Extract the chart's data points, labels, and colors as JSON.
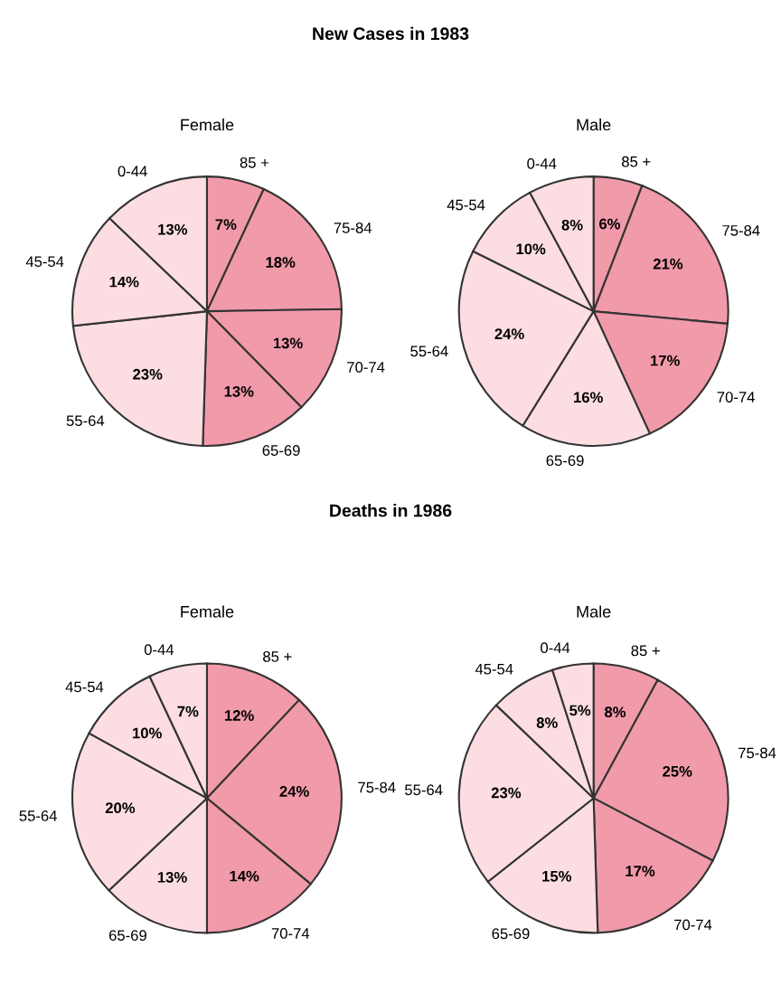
{
  "chart_data": [
    {
      "type": "pie",
      "title": "New Cases in 1983",
      "subtitle": "Female",
      "categories": [
        "85 +",
        "75-84",
        "70-74",
        "65-69",
        "55-64",
        "45-54",
        "0-44"
      ],
      "values": [
        7,
        18,
        13,
        13,
        23,
        14,
        13
      ],
      "value_labels": [
        "7%",
        "18%",
        "13%",
        "13%",
        "23%",
        "14%",
        "13%"
      ],
      "colors": [
        "#f19aa9",
        "#f19aa9",
        "#f19aa9",
        "#f19aa9",
        "#fbdde2",
        "#fbdde2",
        "#fbdde2"
      ]
    },
    {
      "type": "pie",
      "subtitle": "Male",
      "categories": [
        "85 +",
        "75-84",
        "70-74",
        "65-69",
        "55-64",
        "45-54",
        "0-44"
      ],
      "values": [
        6,
        21,
        17,
        16,
        24,
        10,
        8
      ],
      "value_labels": [
        "6%",
        "21%",
        "17%",
        "16%",
        "24%",
        "10%",
        "8%"
      ],
      "colors": [
        "#f19aa9",
        "#f19aa9",
        "#f19aa9",
        "#fbdde2",
        "#fbdde2",
        "#fbdde2",
        "#fbdde2"
      ]
    },
    {
      "type": "pie",
      "title": "Deaths in 1986",
      "subtitle": "Female",
      "categories": [
        "85 +",
        "75-84",
        "70-74",
        "65-69",
        "55-64",
        "45-54",
        "0-44"
      ],
      "values": [
        12,
        24,
        14,
        13,
        20,
        10,
        7
      ],
      "value_labels": [
        "12%",
        "24%",
        "14%",
        "13%",
        "20%",
        "10%",
        "7%"
      ],
      "colors": [
        "#f19aa9",
        "#f19aa9",
        "#f19aa9",
        "#fbdde2",
        "#fbdde2",
        "#fbdde2",
        "#fbdde2"
      ]
    },
    {
      "type": "pie",
      "subtitle": "Male",
      "categories": [
        "85 +",
        "75-84",
        "70-74",
        "65-69",
        "55-64",
        "45-54",
        "0-44"
      ],
      "values": [
        8,
        25,
        17,
        15,
        23,
        8,
        5
      ],
      "value_labels": [
        "8%",
        "25%",
        "17%",
        "15%",
        "23%",
        "8%",
        "5%"
      ],
      "colors": [
        "#f19aa9",
        "#f19aa9",
        "#f19aa9",
        "#fbdde2",
        "#fbdde2",
        "#fbdde2",
        "#fbdde2"
      ]
    }
  ]
}
